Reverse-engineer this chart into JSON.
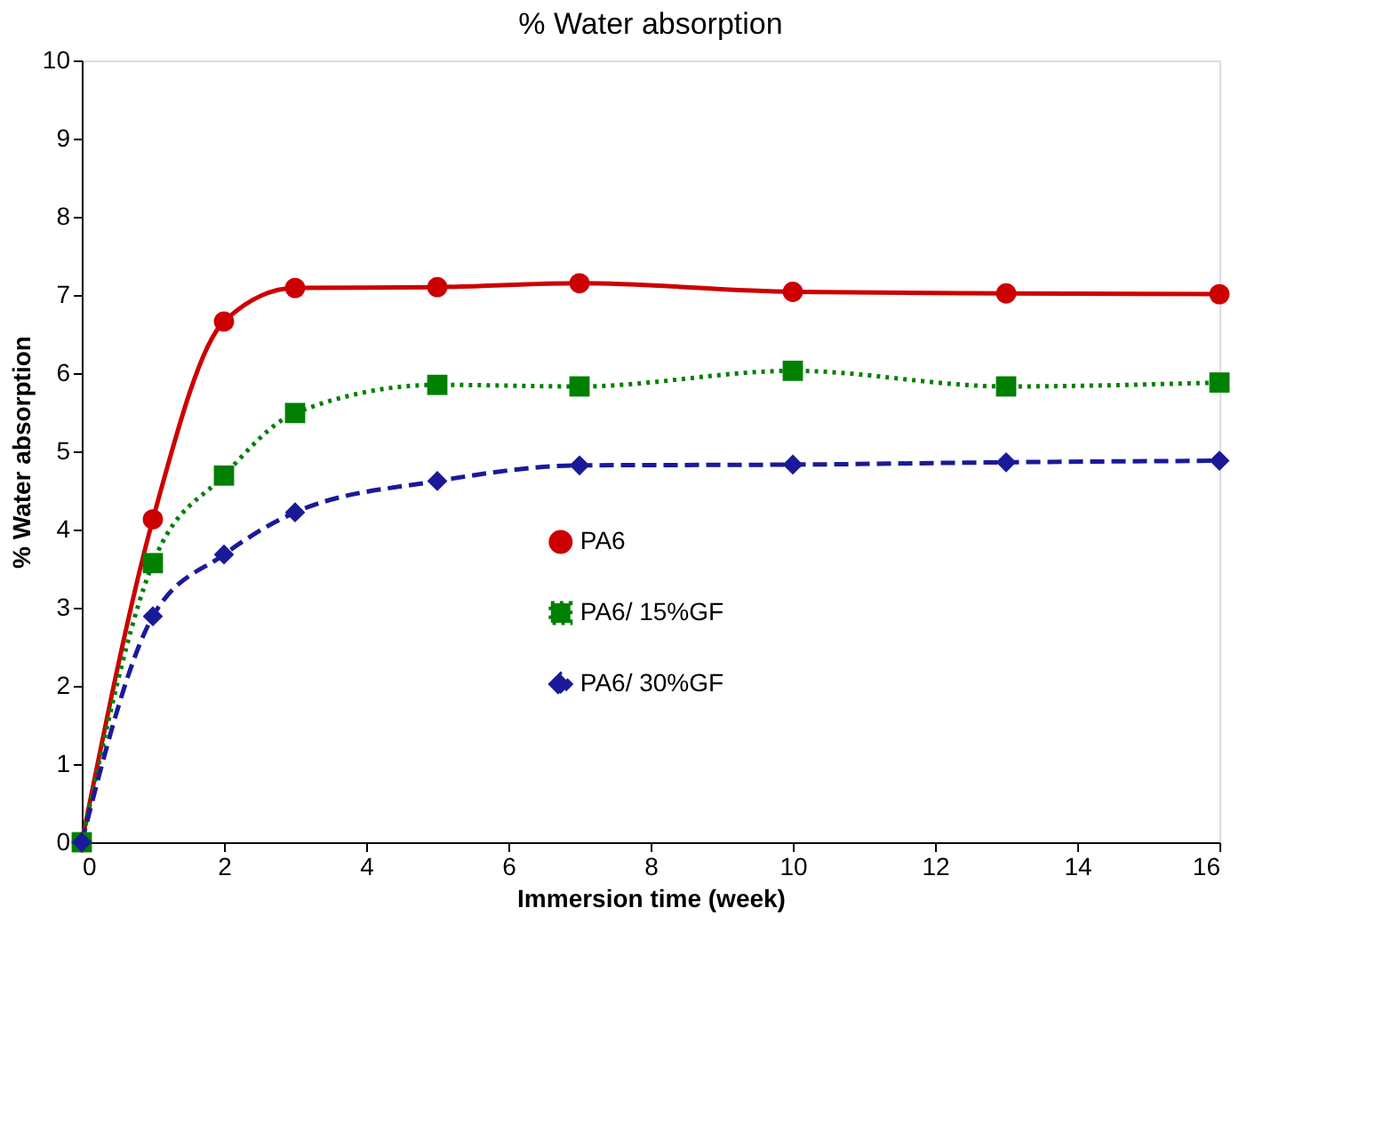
{
  "chart_data": {
    "type": "line",
    "title": "% Water absorption",
    "xlabel": "Immersion time (week)",
    "ylabel": "% Water absorption",
    "x": [
      0,
      1,
      2,
      3,
      5,
      7,
      10,
      13,
      16
    ],
    "series": [
      {
        "name": "PA6",
        "color": "#cc0000",
        "marker": "circle",
        "line_style": "solid",
        "values": [
          0,
          4.13,
          6.66,
          7.09,
          7.1,
          7.15,
          7.04,
          7.02,
          7.01
        ]
      },
      {
        "name": "PA6/ 15%GF",
        "color": "#008000",
        "marker": "square",
        "line_style": "dotted",
        "values": [
          0,
          3.57,
          4.69,
          5.49,
          5.85,
          5.83,
          6.03,
          5.83,
          5.88
        ]
      },
      {
        "name": "PA6/ 30%GF",
        "color": "#1a1a99",
        "marker": "diamond",
        "line_style": "dashed",
        "values": [
          0,
          2.89,
          3.68,
          4.22,
          4.62,
          4.82,
          4.83,
          4.86,
          4.88
        ]
      }
    ],
    "xlim": [
      0,
      16
    ],
    "xticks": [
      0,
      2,
      4,
      6,
      8,
      10,
      12,
      14,
      16
    ],
    "ylim": [
      0,
      10
    ],
    "yticks": [
      0,
      1,
      2,
      3,
      4,
      5,
      6,
      7,
      8,
      9,
      10
    ],
    "grid": false,
    "legend": "bottom"
  }
}
